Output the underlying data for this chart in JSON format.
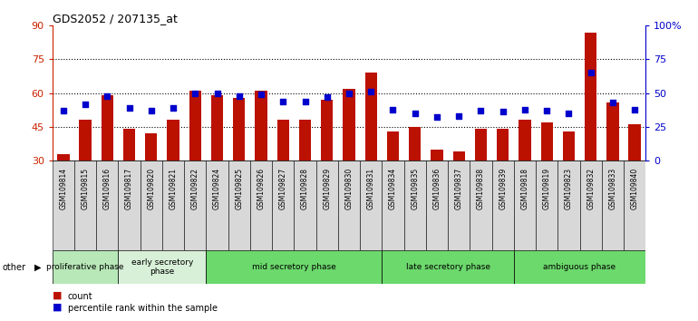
{
  "title": "GDS2052 / 207135_at",
  "samples": [
    "GSM109814",
    "GSM109815",
    "GSM109816",
    "GSM109817",
    "GSM109820",
    "GSM109821",
    "GSM109822",
    "GSM109824",
    "GSM109825",
    "GSM109826",
    "GSM109827",
    "GSM109828",
    "GSM109829",
    "GSM109830",
    "GSM109831",
    "GSM109834",
    "GSM109835",
    "GSM109836",
    "GSM109837",
    "GSM109838",
    "GSM109839",
    "GSM109818",
    "GSM109819",
    "GSM109823",
    "GSM109832",
    "GSM109833",
    "GSM109840"
  ],
  "counts": [
    33,
    48,
    59,
    44,
    42,
    48,
    61,
    59,
    58,
    61,
    48,
    48,
    57,
    62,
    69,
    43,
    45,
    35,
    34,
    44,
    44,
    48,
    47,
    43,
    87,
    56,
    46
  ],
  "percentile": [
    37,
    42,
    48,
    39,
    37,
    39,
    50,
    50,
    48,
    49,
    44,
    44,
    47,
    50,
    51,
    38,
    35,
    32,
    33,
    37,
    36,
    38,
    37,
    35,
    65,
    43,
    38
  ],
  "groups": [
    {
      "label": "proliferative phase",
      "start": 0,
      "end": 3,
      "color": "#b8e8b8"
    },
    {
      "label": "early secretory\nphase",
      "start": 3,
      "end": 7,
      "color": "#d8f0d8"
    },
    {
      "label": "mid secretory phase",
      "start": 7,
      "end": 15,
      "color": "#6cd96c"
    },
    {
      "label": "late secretory phase",
      "start": 15,
      "end": 21,
      "color": "#6cd96c"
    },
    {
      "label": "ambiguous phase",
      "start": 21,
      "end": 27,
      "color": "#6cd96c"
    }
  ],
  "ylim_left": [
    30,
    90
  ],
  "ylim_right": [
    0,
    100
  ],
  "yticks_left": [
    30,
    45,
    60,
    75,
    90
  ],
  "yticks_right": [
    0,
    25,
    50,
    75,
    100
  ],
  "bar_color": "#bb1100",
  "dot_color": "#0000cc",
  "left_axis_color": "#cc2200",
  "right_axis_color": "#0000cc",
  "tick_bg_color": "#d8d8d8",
  "other_label": "other"
}
